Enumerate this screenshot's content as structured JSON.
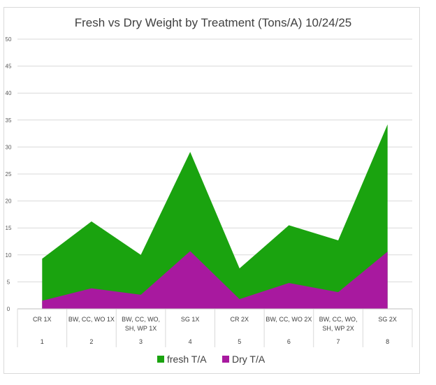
{
  "chart_data": {
    "type": "area",
    "title": "Fresh vs Dry Weight by Treatment (Tons/A) 10/24/25",
    "categories": [
      {
        "label": "CR 1X",
        "number": "1"
      },
      {
        "label": "BW, CC, WO 1X",
        "number": "2"
      },
      {
        "label": "BW, CC, WO, SH, WP 1X",
        "number": "3"
      },
      {
        "label": "SG 1X",
        "number": "4"
      },
      {
        "label": "CR 2X",
        "number": "5"
      },
      {
        "label": "BW, CC, WO 2X",
        "number": "6"
      },
      {
        "label": "BW, CC, WO, SH, WP 2X",
        "number": "7"
      },
      {
        "label": "SG 2X",
        "number": "8"
      }
    ],
    "series": [
      {
        "name": "fresh T/A",
        "color": "#1aa30f",
        "values": [
          9.3,
          16.2,
          10.0,
          29.1,
          7.5,
          15.5,
          12.7,
          34.2
        ]
      },
      {
        "name": "Dry T/A",
        "color": "#a8199f",
        "values": [
          1.5,
          3.8,
          2.6,
          10.7,
          1.8,
          4.8,
          3.1,
          10.6
        ]
      }
    ],
    "ylim": [
      0,
      50
    ],
    "yticks": [
      "0",
      "5",
      "10",
      "15",
      "20",
      "25",
      "30",
      "35",
      "40",
      "45",
      "50"
    ],
    "grid": true,
    "legend_position": "bottom"
  }
}
